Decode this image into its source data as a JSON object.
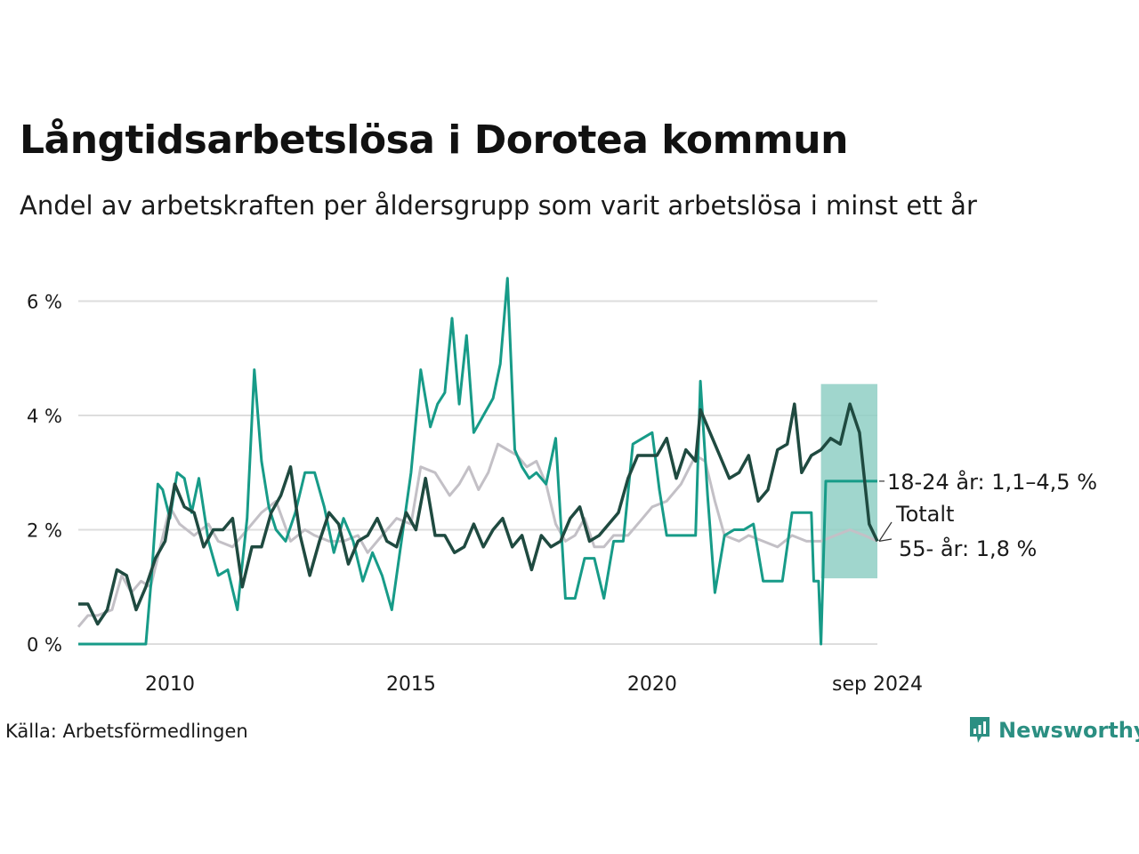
{
  "title": "Långtidsarbetslösa i Dorotea kommun",
  "subtitle": "Andel av arbetskraften per åldersgrupp som varit arbetslösa i minst ett år",
  "source": "Källa: Arbetsförmedlingen",
  "brand": "Newsworthy",
  "colors": {
    "total": "#1f4a40",
    "age_18_24": "#179b88",
    "age_55": "#c3c0c6",
    "band": "#8fcfc4",
    "grid": "#dddddd",
    "brand": "#2b8f82"
  },
  "chart_data": {
    "type": "line",
    "xlim": [
      2008.1,
      2024.67
    ],
    "ylim": [
      0,
      6.6
    ],
    "y_ticks": [
      0,
      2,
      4,
      6
    ],
    "y_tick_labels": [
      "0 %",
      "2 %",
      "4 %",
      "6 %"
    ],
    "x_ticks": [
      2010,
      2015,
      2020,
      2024.67
    ],
    "x_tick_labels": [
      "2010",
      "2015",
      "2020",
      "sep 2024"
    ],
    "series": [
      {
        "name": "55- år",
        "label": "55- år: 1,8 %",
        "x": [
          2008.1,
          2008.3,
          2008.5,
          2008.8,
          2009.0,
          2009.2,
          2009.4,
          2009.6,
          2009.8,
          2010.0,
          2010.2,
          2010.5,
          2010.8,
          2011.0,
          2011.3,
          2011.6,
          2011.9,
          2012.2,
          2012.5,
          2012.8,
          2013.0,
          2013.3,
          2013.6,
          2013.9,
          2014.1,
          2014.4,
          2014.7,
          2015.0,
          2015.2,
          2015.5,
          2015.8,
          2016.0,
          2016.2,
          2016.4,
          2016.6,
          2016.8,
          2017.0,
          2017.2,
          2017.4,
          2017.6,
          2017.8,
          2018.0,
          2018.2,
          2018.4,
          2018.6,
          2018.8,
          2019.0,
          2019.2,
          2019.5,
          2019.8,
          2020.0,
          2020.3,
          2020.6,
          2020.9,
          2021.1,
          2021.3,
          2021.5,
          2021.8,
          2022.0,
          2022.3,
          2022.6,
          2022.9,
          2023.2,
          2023.5,
          2023.8,
          2024.1,
          2024.4,
          2024.67
        ],
        "values": [
          0.3,
          0.5,
          0.5,
          0.6,
          1.2,
          0.9,
          1.1,
          1.0,
          1.7,
          2.4,
          2.1,
          1.9,
          2.1,
          1.8,
          1.7,
          2.0,
          2.3,
          2.5,
          1.8,
          2.0,
          1.9,
          1.8,
          1.8,
          1.9,
          1.6,
          1.9,
          2.2,
          2.1,
          3.1,
          3.0,
          2.6,
          2.8,
          3.1,
          2.7,
          3.0,
          3.5,
          3.4,
          3.3,
          3.1,
          3.2,
          2.8,
          2.1,
          1.8,
          1.9,
          2.2,
          1.7,
          1.7,
          1.9,
          1.9,
          2.2,
          2.4,
          2.5,
          2.8,
          3.3,
          3.2,
          2.5,
          1.9,
          1.8,
          1.9,
          1.8,
          1.7,
          1.9,
          1.8,
          1.8,
          1.9,
          2.0,
          1.9,
          1.8
        ]
      },
      {
        "name": "18-24 år",
        "label": "18-24 år: 1,1–4,5 %",
        "band": [
          1.15,
          4.55
        ],
        "band_start": 2023.5,
        "x": [
          2008.1,
          2009.5,
          2009.62,
          2009.75,
          2009.85,
          2010.0,
          2010.15,
          2010.3,
          2010.45,
          2010.6,
          2010.8,
          2011.0,
          2011.2,
          2011.4,
          2011.6,
          2011.75,
          2011.9,
          2012.05,
          2012.2,
          2012.4,
          2012.6,
          2012.8,
          2013.0,
          2013.2,
          2013.4,
          2013.6,
          2013.8,
          2014.0,
          2014.2,
          2014.4,
          2014.6,
          2014.8,
          2015.0,
          2015.2,
          2015.4,
          2015.55,
          2015.7,
          2015.85,
          2016.0,
          2016.15,
          2016.3,
          2016.5,
          2016.7,
          2016.85,
          2017.0,
          2017.15,
          2017.3,
          2017.45,
          2017.6,
          2017.8,
          2018.0,
          2018.2,
          2018.4,
          2018.6,
          2018.8,
          2019.0,
          2019.2,
          2019.4,
          2019.6,
          2019.8,
          2020.0,
          2020.15,
          2020.3,
          2020.5,
          2020.7,
          2020.9,
          2021.0,
          2021.15,
          2021.3,
          2021.5,
          2021.7,
          2021.9,
          2022.1,
          2022.3,
          2022.5,
          2022.7,
          2022.9,
          2023.1,
          2023.3,
          2023.35,
          2023.45,
          2023.5,
          2023.6,
          2023.8,
          2024.0,
          2024.2,
          2024.4,
          2024.67
        ],
        "values": [
          0,
          0,
          1.2,
          2.8,
          2.7,
          2.2,
          3.0,
          2.9,
          2.3,
          2.9,
          1.8,
          1.2,
          1.3,
          0.6,
          2.2,
          4.8,
          3.2,
          2.4,
          2.0,
          1.8,
          2.3,
          3.0,
          3.0,
          2.4,
          1.6,
          2.2,
          1.8,
          1.1,
          1.6,
          1.2,
          0.6,
          1.8,
          3.0,
          4.8,
          3.8,
          4.2,
          4.4,
          5.7,
          4.2,
          5.4,
          3.7,
          4.0,
          4.3,
          4.9,
          6.4,
          3.4,
          3.1,
          2.9,
          3.0,
          2.8,
          3.6,
          0.8,
          0.8,
          1.5,
          1.5,
          0.8,
          1.8,
          1.8,
          3.5,
          3.6,
          3.7,
          2.7,
          1.9,
          1.9,
          1.9,
          1.9,
          4.6,
          2.6,
          0.9,
          1.9,
          2.0,
          2.0,
          2.1,
          1.1,
          1.1,
          1.1,
          2.3,
          2.3,
          2.3,
          1.1,
          1.1,
          0,
          2.85,
          2.85,
          2.85,
          2.85,
          2.85,
          2.85
        ]
      },
      {
        "name": "Totalt",
        "label": "Totalt",
        "x": [
          2008.1,
          2008.3,
          2008.5,
          2008.7,
          2008.9,
          2009.1,
          2009.3,
          2009.5,
          2009.7,
          2009.9,
          2010.1,
          2010.3,
          2010.5,
          2010.7,
          2010.9,
          2011.1,
          2011.3,
          2011.5,
          2011.7,
          2011.9,
          2012.1,
          2012.3,
          2012.5,
          2012.7,
          2012.9,
          2013.1,
          2013.3,
          2013.5,
          2013.7,
          2013.9,
          2014.1,
          2014.3,
          2014.5,
          2014.7,
          2014.9,
          2015.1,
          2015.3,
          2015.5,
          2015.7,
          2015.9,
          2016.1,
          2016.3,
          2016.5,
          2016.7,
          2016.9,
          2017.1,
          2017.3,
          2017.5,
          2017.7,
          2017.9,
          2018.1,
          2018.3,
          2018.5,
          2018.7,
          2018.9,
          2019.1,
          2019.3,
          2019.5,
          2019.7,
          2019.9,
          2020.1,
          2020.3,
          2020.5,
          2020.7,
          2020.9,
          2021.0,
          2021.2,
          2021.4,
          2021.6,
          2021.8,
          2022.0,
          2022.2,
          2022.4,
          2022.6,
          2022.8,
          2022.95,
          2023.1,
          2023.3,
          2023.5,
          2023.7,
          2023.9,
          2024.1,
          2024.3,
          2024.5,
          2024.67
        ],
        "values": [
          0.7,
          0.7,
          0.35,
          0.6,
          1.3,
          1.2,
          0.6,
          1.0,
          1.5,
          1.8,
          2.8,
          2.4,
          2.3,
          1.7,
          2.0,
          2.0,
          2.2,
          1.0,
          1.7,
          1.7,
          2.3,
          2.6,
          3.1,
          1.9,
          1.2,
          1.8,
          2.3,
          2.1,
          1.4,
          1.8,
          1.9,
          2.2,
          1.8,
          1.7,
          2.3,
          2.0,
          2.9,
          1.9,
          1.9,
          1.6,
          1.7,
          2.1,
          1.7,
          2.0,
          2.2,
          1.7,
          1.9,
          1.3,
          1.9,
          1.7,
          1.8,
          2.2,
          2.4,
          1.8,
          1.9,
          2.1,
          2.3,
          2.9,
          3.3,
          3.3,
          3.3,
          3.6,
          2.9,
          3.4,
          3.2,
          4.1,
          3.7,
          3.3,
          2.9,
          3.0,
          3.3,
          2.5,
          2.7,
          3.4,
          3.5,
          4.2,
          3.0,
          3.3,
          3.4,
          3.6,
          3.5,
          4.2,
          3.7,
          2.1,
          1.8
        ]
      }
    ]
  }
}
